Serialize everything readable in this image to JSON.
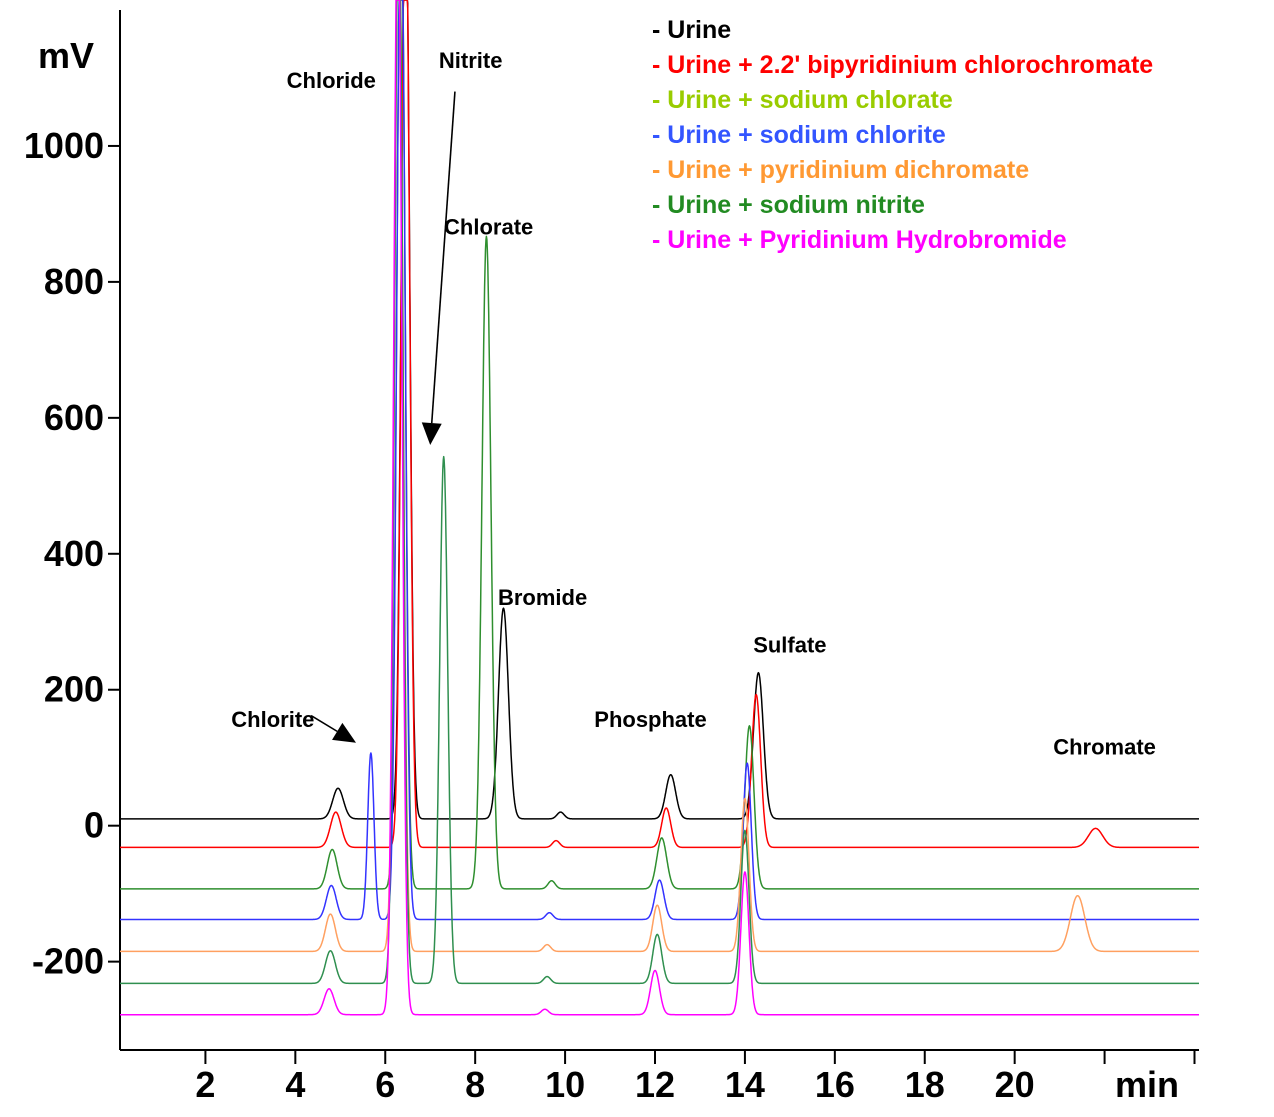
{
  "chart_data": {
    "type": "line",
    "title": "",
    "ylabel": "mV",
    "xlabel": "min",
    "xlim": [
      0.1,
      24.1
    ],
    "ylim": [
      -330,
      1200
    ],
    "yticks": [
      0,
      200,
      400,
      600,
      800,
      1000
    ],
    "ytick_labels": [
      "0",
      "200",
      "400",
      "600",
      "800",
      "1000"
    ],
    "ytick_labels_neg": [
      {
        "value": -200,
        "label": "-200"
      }
    ],
    "xticks": [
      2,
      4,
      6,
      8,
      10,
      12,
      14,
      16,
      18,
      20,
      22,
      24
    ],
    "xtick_labels": [
      {
        "value": 2,
        "label": "2"
      },
      {
        "value": 4,
        "label": "4"
      },
      {
        "value": 6,
        "label": "6"
      },
      {
        "value": 8,
        "label": "8"
      },
      {
        "value": 10,
        "label": "10"
      },
      {
        "value": 12,
        "label": "12"
      },
      {
        "value": 14,
        "label": "14"
      },
      {
        "value": 16,
        "label": "16"
      },
      {
        "value": 18,
        "label": "18"
      },
      {
        "value": 20,
        "label": "20"
      }
    ],
    "grid": false,
    "legend_position": "top-right",
    "series": [
      {
        "name": "- Urine",
        "color": "#000000",
        "baseline": 10,
        "peaks": [
          [
            4.95,
            45,
            0.12
          ],
          [
            6.45,
            1400,
            0.09
          ],
          [
            8.63,
            310,
            0.11
          ],
          [
            9.9,
            10,
            0.08
          ],
          [
            12.35,
            65,
            0.11
          ],
          [
            14.3,
            215,
            0.11
          ]
        ]
      },
      {
        "name": "- Urine + 2.2' bipyridinium chlorochromate",
        "color": "#ff0000",
        "baseline": -32,
        "peaks": [
          [
            4.9,
            52,
            0.12
          ],
          [
            6.45,
            1440,
            0.09
          ],
          [
            9.8,
            10,
            0.08
          ],
          [
            12.25,
            58,
            0.1
          ],
          [
            14.25,
            225,
            0.1
          ],
          [
            21.8,
            28,
            0.16
          ]
        ]
      },
      {
        "name": "- Urine + sodium chlorate",
        "color": "#2f8f2f",
        "baseline": -93,
        "peaks": [
          [
            4.82,
            58,
            0.11
          ],
          [
            6.35,
            1490,
            0.09
          ],
          [
            8.25,
            960,
            0.1
          ],
          [
            9.7,
            12,
            0.08
          ],
          [
            12.15,
            75,
            0.11
          ],
          [
            14.1,
            240,
            0.1
          ]
        ]
      },
      {
        "name": "- Urine + sodium chlorite",
        "color": "#3333ff",
        "baseline": -138,
        "peaks": [
          [
            4.8,
            50,
            0.11
          ],
          [
            5.68,
            245,
            0.07
          ],
          [
            6.35,
            1540,
            0.09
          ],
          [
            9.65,
            10,
            0.08
          ],
          [
            12.1,
            58,
            0.1
          ],
          [
            14.05,
            230,
            0.09
          ]
        ]
      },
      {
        "name": "- Urine + pyridinium dichromate",
        "color": "#ffa060",
        "baseline": -185,
        "peaks": [
          [
            4.78,
            55,
            0.11
          ],
          [
            6.3,
            1580,
            0.09
          ],
          [
            9.6,
            10,
            0.08
          ],
          [
            12.05,
            68,
            0.1
          ],
          [
            14.0,
            225,
            0.09
          ],
          [
            21.4,
            82,
            0.16
          ]
        ]
      },
      {
        "name": "- Urine + sodium nitrite",
        "color": "#2f8f4f",
        "baseline": -232,
        "peaks": [
          [
            4.78,
            48,
            0.11
          ],
          [
            6.3,
            1620,
            0.09
          ],
          [
            7.3,
            775,
            0.09
          ],
          [
            9.6,
            10,
            0.08
          ],
          [
            12.05,
            72,
            0.1
          ],
          [
            14.0,
            225,
            0.09
          ]
        ]
      },
      {
        "name": "- Urine + Pyridinium Hydrobromide",
        "color": "#ff00ff",
        "baseline": -278,
        "peaks": [
          [
            4.75,
            38,
            0.11
          ],
          [
            6.28,
            1650,
            0.09
          ],
          [
            9.55,
            8,
            0.08
          ],
          [
            12.0,
            65,
            0.1
          ],
          [
            14.0,
            210,
            0.09
          ]
        ]
      }
    ],
    "legend_colors": [
      "#000000",
      "#ff0000",
      "#99cc00",
      "#3355ff",
      "#ff9933",
      "#228b22",
      "#ff00ff"
    ],
    "annotations": [
      {
        "text": "Chloride",
        "x": 4.8,
        "y": 1085
      },
      {
        "text": "Nitrite",
        "x": 7.9,
        "y": 1115
      },
      {
        "text": "Chlorate",
        "x": 8.3,
        "y": 870
      },
      {
        "text": "Bromide",
        "x": 9.5,
        "y": 325
      },
      {
        "text": "Chlorite",
        "x": 3.5,
        "y": 145
      },
      {
        "text": "Phosphate",
        "x": 11.9,
        "y": 145
      },
      {
        "text": "Sulfate",
        "x": 15.0,
        "y": 255
      },
      {
        "text": "Chromate",
        "x": 22.0,
        "y": 105
      }
    ],
    "arrows": [
      {
        "from": [
          7.55,
          1080
        ],
        "to": [
          7.0,
          560
        ]
      },
      {
        "from": [
          4.35,
          162
        ],
        "to": [
          5.35,
          122
        ]
      }
    ]
  }
}
